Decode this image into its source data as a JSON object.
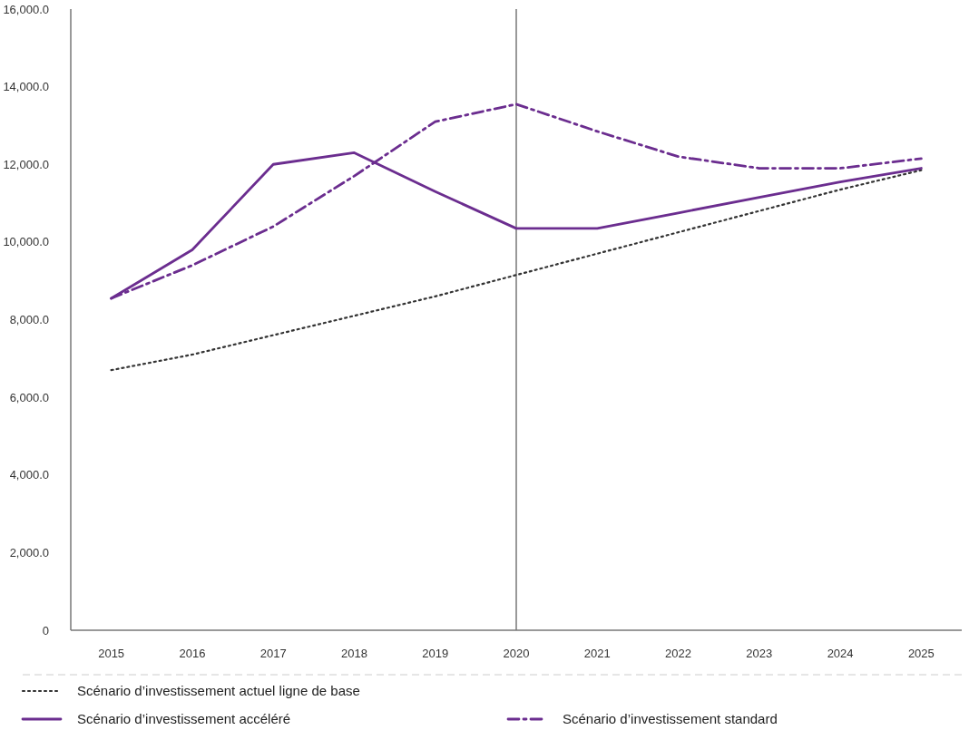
{
  "chart_data": {
    "type": "line",
    "categories": [
      "2015",
      "2016",
      "2017",
      "2018",
      "2019",
      "2020",
      "2021",
      "2022",
      "2023",
      "2024",
      "2025"
    ],
    "ylim": [
      0,
      16000
    ],
    "yticks": [
      {
        "value": 0,
        "label": "0"
      },
      {
        "value": 2000,
        "label": "2,000.0"
      },
      {
        "value": 4000,
        "label": "4,000.0"
      },
      {
        "value": 6000,
        "label": "6,000.0"
      },
      {
        "value": 8000,
        "label": "8,000.0"
      },
      {
        "value": 10000,
        "label": "10,000.0"
      },
      {
        "value": 12000,
        "label": "12,000.0"
      },
      {
        "value": 14000,
        "label": "14,000.0"
      },
      {
        "value": 16000,
        "label": "16,000.0"
      }
    ],
    "series": [
      {
        "name": "Scénario d’investissement actuel ligne de base",
        "color": "#333333",
        "line_style": "dotted",
        "values": [
          6700,
          7100,
          7600,
          8100,
          8600,
          9150,
          9700,
          10250,
          10800,
          11350,
          11850
        ]
      },
      {
        "name": "Scénario d’investissement accéléré",
        "color": "#6b2d8f",
        "line_style": "solid",
        "values": [
          8550,
          9800,
          12000,
          12300,
          11300,
          10350,
          10350,
          10750,
          11150,
          11550,
          11900
        ]
      },
      {
        "name": "Scénario d’investissement standard",
        "color": "#6b2d8f",
        "line_style": "dashdot",
        "values": [
          8550,
          9400,
          10400,
          11700,
          13100,
          13550,
          12850,
          12200,
          11900,
          11900,
          12150
        ]
      }
    ],
    "ref_lines": [
      {
        "axis": "x",
        "value": "2020",
        "color": "#999999"
      }
    ],
    "grid": false,
    "legend": "bottom",
    "marker": "none"
  }
}
